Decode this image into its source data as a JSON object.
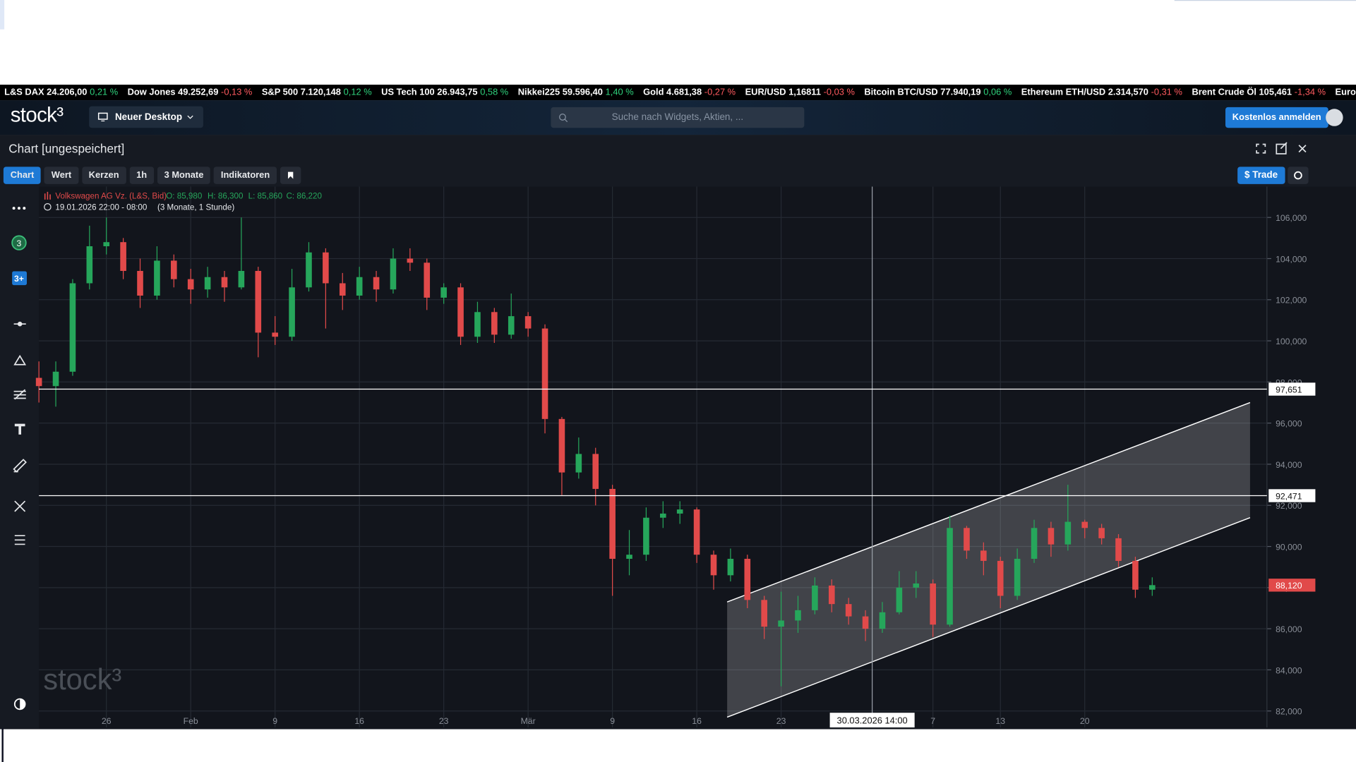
{
  "ticker": [
    {
      "name": "L&S DAX",
      "value": "24.206,00",
      "change": "0,21 %"
    },
    {
      "name": "Dow Jones",
      "value": "49.252,69",
      "change": "-0,13 %"
    },
    {
      "name": "S&P 500",
      "value": "7.120,148",
      "change": "0,12 %"
    },
    {
      "name": "US Tech 100",
      "value": "26.943,75",
      "change": "0,58 %"
    },
    {
      "name": "Nikkei225",
      "value": "59.596,40",
      "change": "1,40 %"
    },
    {
      "name": "Gold",
      "value": "4.681,38",
      "change": "-0,27 %"
    },
    {
      "name": "EUR/USD",
      "value": "1,16811",
      "change": "-0,03 %"
    },
    {
      "name": "Bitcoin BTC/USD",
      "value": "77.940,19",
      "change": "0,06 %"
    },
    {
      "name": "Ethereum ETH/USD",
      "value": "2.314,570",
      "change": "-0,31 %"
    },
    {
      "name": "Brent Crude Öl",
      "value": "105,461",
      "change": "-1,34 %"
    },
    {
      "name": "Euro-Bund Fu"
    }
  ],
  "header": {
    "logo": "stock³",
    "desktop_button": "Neuer Desktop",
    "search_placeholder": "Suche nach Widgets, Aktien, ...",
    "login_button": "Kostenlos anmelden"
  },
  "panel": {
    "title": "Chart [ungespeichert]",
    "toolbar": [
      "Chart",
      "Wert",
      "Kerzen",
      "1h",
      "3 Monate",
      "Indikatoren"
    ],
    "trade_button": "$ Trade"
  },
  "sidebar": {
    "badges": [
      "3",
      "3+"
    ]
  },
  "chart_data": {
    "type": "candlestick",
    "series_name": "Volkswagen AG Vz. (L&S, Bid)",
    "ohlc_readout": [
      "O: 85,980",
      "H: 86,300",
      "L: 85,860",
      "C: 86,220"
    ],
    "period": "19.01.2026 22:00 - 08:00",
    "range_label": "(3 Monate, 1 Stunde)",
    "watermark": "stock³",
    "up_color": "#26a65b",
    "down_color": "#e14a4a",
    "x": [
      0,
      1,
      2,
      3,
      4,
      5,
      6,
      7,
      8,
      9,
      10,
      11,
      12,
      13,
      14,
      15,
      16,
      17,
      18,
      19,
      20,
      21,
      22,
      23,
      24,
      25,
      26,
      27,
      28,
      29,
      30,
      31,
      32,
      33,
      34,
      35,
      36,
      37,
      38,
      39,
      40,
      41,
      42,
      43,
      44,
      45,
      46,
      47,
      48,
      49,
      50,
      51,
      52,
      53,
      54,
      55,
      56,
      57,
      58,
      59,
      60,
      61,
      62,
      63,
      64,
      65,
      66
    ],
    "open": [
      98.2,
      97.8,
      98.5,
      102.8,
      104.6,
      104.8,
      103.4,
      102.2,
      103.9,
      103.0,
      102.5,
      103.1,
      102.6,
      103.4,
      100.4,
      100.2,
      102.6,
      104.3,
      102.8,
      102.2,
      103.1,
      102.5,
      104.0,
      103.8,
      102.1,
      102.6,
      100.2,
      101.4,
      100.3,
      101.2,
      100.6,
      96.2,
      93.6,
      94.5,
      92.8,
      89.4,
      89.6,
      91.4,
      91.6,
      91.8,
      89.6,
      88.6,
      89.4,
      87.4,
      86.1,
      86.4,
      86.9,
      88.1,
      87.2,
      86.6,
      86.0,
      86.8,
      88.0,
      88.2,
      86.2,
      90.9,
      89.8,
      89.3,
      87.6,
      89.4,
      90.9,
      90.1,
      91.2,
      90.9,
      90.4,
      89.3,
      87.9
    ],
    "high": [
      99.0,
      99.0,
      103.0,
      105.6,
      106.0,
      105.0,
      104.0,
      104.6,
      104.2,
      103.5,
      103.6,
      103.4,
      106.0,
      103.6,
      101.2,
      103.5,
      104.8,
      104.5,
      103.3,
      103.6,
      103.4,
      104.5,
      104.5,
      104.0,
      102.8,
      102.8,
      101.9,
      101.6,
      102.3,
      101.4,
      100.8,
      96.3,
      95.3,
      94.8,
      93.0,
      90.8,
      91.9,
      92.2,
      92.2,
      91.9,
      89.8,
      89.9,
      89.6,
      87.6,
      87.8,
      87.6,
      88.5,
      88.4,
      87.5,
      86.9,
      87.3,
      88.8,
      88.8,
      88.4,
      91.5,
      91.0,
      90.2,
      89.5,
      89.9,
      91.3,
      91.2,
      93.0,
      91.3,
      91.1,
      90.6,
      89.5,
      88.5
    ],
    "low": [
      97.0,
      96.8,
      98.3,
      102.5,
      104.2,
      103.0,
      101.6,
      102.0,
      102.6,
      101.8,
      102.1,
      101.9,
      102.5,
      99.2,
      99.8,
      100.0,
      102.4,
      100.6,
      101.5,
      102.0,
      101.9,
      102.3,
      103.4,
      101.5,
      101.8,
      99.8,
      99.9,
      99.9,
      100.1,
      100.2,
      95.5,
      92.5,
      93.3,
      92.0,
      87.6,
      88.6,
      89.3,
      90.9,
      91.1,
      89.2,
      87.9,
      88.3,
      87.0,
      85.5,
      83.2,
      85.8,
      86.7,
      86.8,
      86.2,
      85.4,
      85.8,
      86.7,
      87.5,
      85.6,
      86.1,
      89.4,
      88.6,
      87.0,
      87.4,
      89.2,
      89.5,
      89.8,
      90.4,
      90.1,
      89.0,
      87.5,
      87.6
    ],
    "close": [
      97.8,
      98.5,
      102.8,
      104.6,
      104.8,
      103.4,
      102.2,
      103.9,
      103.0,
      102.5,
      103.1,
      102.6,
      103.4,
      100.4,
      100.2,
      102.6,
      104.3,
      102.8,
      102.2,
      103.1,
      102.5,
      104.0,
      103.8,
      102.1,
      102.6,
      100.2,
      101.4,
      100.3,
      101.2,
      100.6,
      96.2,
      93.6,
      94.5,
      92.8,
      89.4,
      89.6,
      91.4,
      91.6,
      91.8,
      89.6,
      88.6,
      89.4,
      87.4,
      86.1,
      86.4,
      86.9,
      88.1,
      87.2,
      86.6,
      86.0,
      86.8,
      88.0,
      88.2,
      86.2,
      90.9,
      89.8,
      89.3,
      87.6,
      89.4,
      90.9,
      90.1,
      91.2,
      90.9,
      90.4,
      89.3,
      87.9,
      88.12
    ],
    "xlim": [
      0,
      72.8
    ],
    "xticks": [
      {
        "value": 4,
        "label": "26"
      },
      {
        "value": 9,
        "label": "Feb"
      },
      {
        "value": 14,
        "label": "9"
      },
      {
        "value": 19,
        "label": "16"
      },
      {
        "value": 24,
        "label": "23"
      },
      {
        "value": 29,
        "label": "Mär"
      },
      {
        "value": 34,
        "label": "9"
      },
      {
        "value": 39,
        "label": "16"
      },
      {
        "value": 44,
        "label": "23"
      },
      {
        "value": 53,
        "label": "7"
      },
      {
        "value": 57,
        "label": "13"
      },
      {
        "value": 62,
        "label": "20"
      }
    ],
    "ylim": [
      81.2,
      107.5
    ],
    "yticks": [
      {
        "value": 82,
        "label": "82,000"
      },
      {
        "value": 84,
        "label": "84,000"
      },
      {
        "value": 86,
        "label": "86,000"
      },
      {
        "value": 88,
        "label": "88,000"
      },
      {
        "value": 90,
        "label": "90,000"
      },
      {
        "value": 92,
        "label": "92,000"
      },
      {
        "value": 94,
        "label": "94,000"
      },
      {
        "value": 96,
        "label": "96,000"
      },
      {
        "value": 98,
        "label": "98,000"
      },
      {
        "value": 100,
        "label": "100,000"
      },
      {
        "value": 102,
        "label": "102,000"
      },
      {
        "value": 104,
        "label": "104,000"
      },
      {
        "value": 106,
        "label": "106,000"
      }
    ],
    "grid": true,
    "levels": [
      {
        "value": 97.651,
        "label": "97,651"
      },
      {
        "value": 92.471,
        "label": "92,471"
      }
    ],
    "last_price": {
      "value": 88.12,
      "label": "88,120"
    },
    "crosshair": {
      "value": 49.4,
      "label": "30.03.2026 14:00"
    },
    "channel": {
      "x": [
        40.8,
        71.8
      ],
      "upper": [
        87.3,
        97.0
      ],
      "lower": [
        81.7,
        91.4
      ]
    }
  }
}
